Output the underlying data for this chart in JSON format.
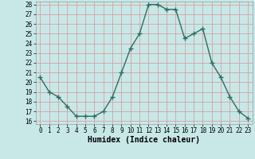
{
  "x": [
    0,
    1,
    2,
    3,
    4,
    5,
    6,
    7,
    8,
    9,
    10,
    11,
    12,
    13,
    14,
    15,
    16,
    17,
    18,
    19,
    20,
    21,
    22,
    23
  ],
  "y": [
    20.5,
    19.0,
    18.5,
    17.5,
    16.5,
    16.5,
    16.5,
    17.0,
    18.5,
    21.0,
    23.5,
    25.0,
    28.0,
    28.0,
    27.5,
    27.5,
    24.5,
    25.0,
    25.5,
    22.0,
    20.5,
    18.5,
    17.0,
    16.3
  ],
  "line_color": "#2d6e63",
  "marker": "+",
  "marker_size": 4,
  "bg_color": "#c8e8e8",
  "grid_color": "#d8a0a0",
  "xlabel": "Humidex (Indice chaleur)",
  "ylim": [
    16,
    28
  ],
  "xlim": [
    -0.5,
    23.5
  ],
  "yticks": [
    16,
    17,
    18,
    19,
    20,
    21,
    22,
    23,
    24,
    25,
    26,
    27,
    28
  ],
  "xticks": [
    0,
    1,
    2,
    3,
    4,
    5,
    6,
    7,
    8,
    9,
    10,
    11,
    12,
    13,
    14,
    15,
    16,
    17,
    18,
    19,
    20,
    21,
    22,
    23
  ],
  "xlabel_fontsize": 7,
  "tick_fontsize": 5.5,
  "linewidth": 1.0,
  "marker_lw": 1.0
}
